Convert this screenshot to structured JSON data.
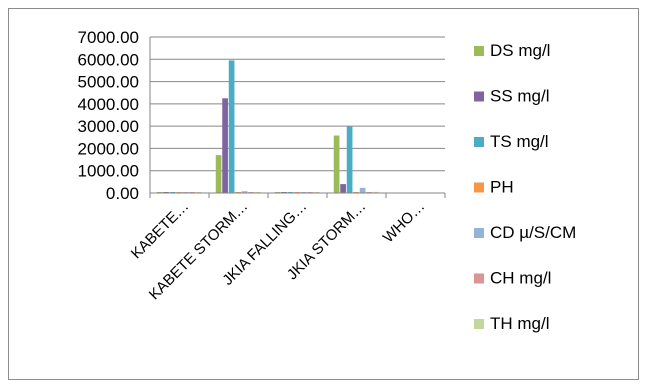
{
  "chart_data": {
    "type": "bar",
    "categories": [
      "KABETE…",
      "KABETE STORM…",
      "JKIA FALLING…",
      "JKIA STORM…",
      "WHO…"
    ],
    "series": [
      {
        "name": "DS mg/l",
        "color": "#9BBB59",
        "values": [
          20,
          1700,
          20,
          2580,
          0
        ]
      },
      {
        "name": "SS mg/l",
        "color": "#8064A2",
        "values": [
          20,
          4250,
          20,
          400,
          0
        ]
      },
      {
        "name": "TS mg/l",
        "color": "#4BACC6",
        "values": [
          20,
          5950,
          40,
          2980,
          0
        ]
      },
      {
        "name": "PH",
        "color": "#F79646",
        "values": [
          8,
          8,
          8,
          8,
          0
        ]
      },
      {
        "name": "CD µ/S/CM",
        "color": "#95B3D7",
        "values": [
          30,
          80,
          30,
          230,
          0
        ]
      },
      {
        "name": "CH mg/l",
        "color": "#D99694",
        "values": [
          15,
          20,
          15,
          40,
          0
        ]
      },
      {
        "name": "TH mg/l",
        "color": "#C3D69B",
        "values": [
          20,
          30,
          20,
          50,
          0
        ]
      }
    ],
    "yticks": [
      "0.00",
      "1000.00",
      "2000.00",
      "3000.00",
      "4000.00",
      "5000.00",
      "6000.00",
      "7000.00"
    ],
    "ylim": [
      0,
      7000
    ],
    "grid": true,
    "legend": "right"
  }
}
